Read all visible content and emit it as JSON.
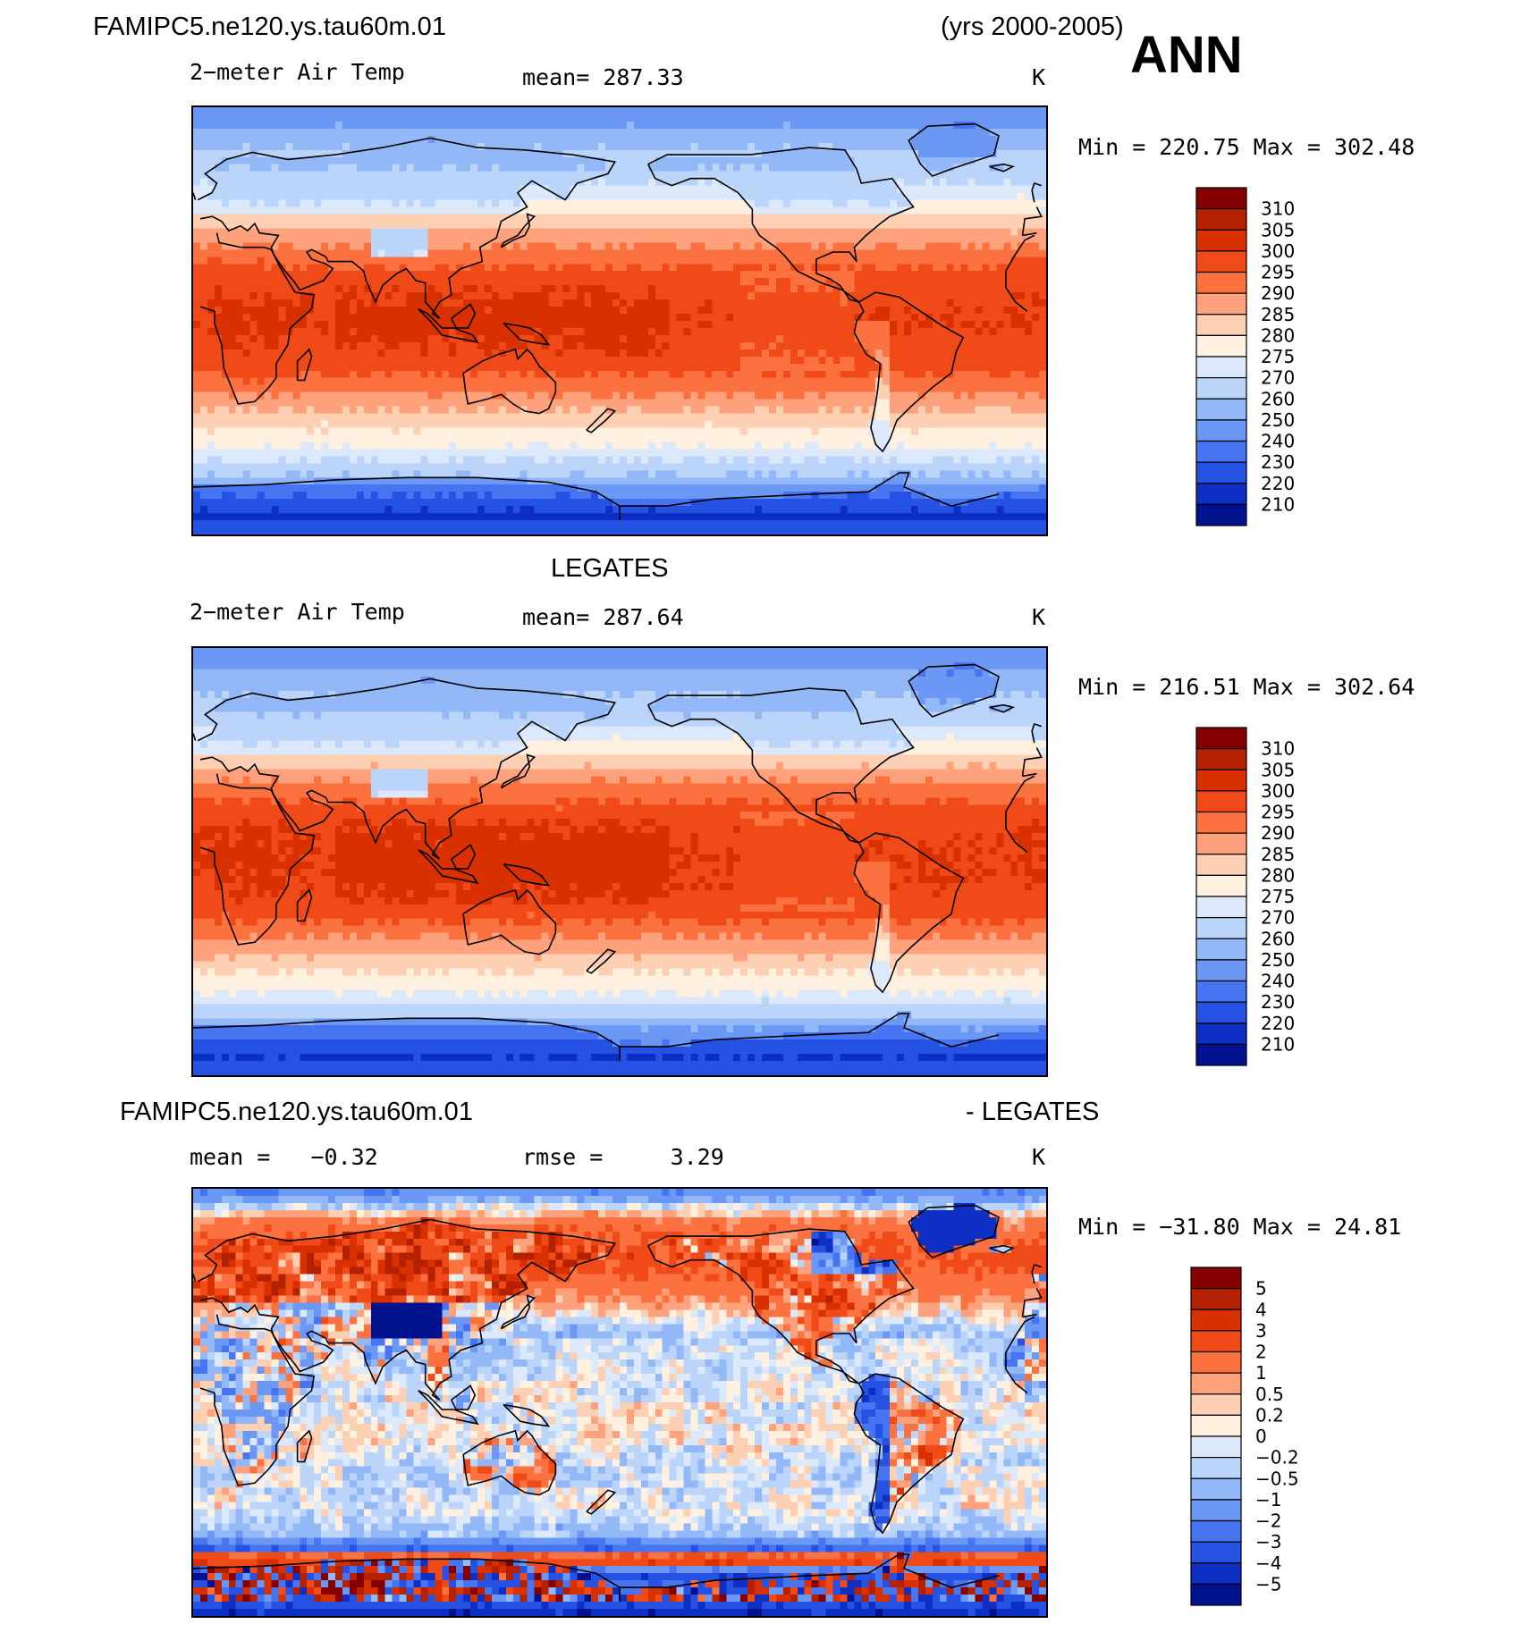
{
  "figure": {
    "case_name": "FAMIPC5.ne120.ys.tau60m.01",
    "years": "(yrs 2000-2005)",
    "season": "ANN",
    "obs_name": "LEGATES",
    "diff_suffix": "- LEGATES"
  },
  "panels": [
    {
      "variable": "2−meter Air Temp",
      "stat_label": "mean=",
      "stat_value": "287.33",
      "units": "K",
      "minmax": "Min = 220.75 Max = 302.48"
    },
    {
      "variable": "2−meter Air Temp",
      "stat_label": "mean=",
      "stat_value": "287.64",
      "units": "K",
      "minmax": "Min = 216.51 Max = 302.64"
    },
    {
      "mean_label": "mean =",
      "mean_value": "−0.32",
      "rmse_label": "rmse =",
      "rmse_value": "3.29",
      "units": "K",
      "minmax": "Min = −31.80 Max =   24.81"
    }
  ],
  "chart_data": {
    "type": "heatmap",
    "colorbars": [
      {
        "levels": [
          "310",
          "305",
          "300",
          "295",
          "290",
          "285",
          "280",
          "275",
          "270",
          "260",
          "250",
          "240",
          "230",
          "220",
          "210"
        ],
        "colors": [
          "#850000",
          "#b32100",
          "#d93000",
          "#f04a18",
          "#fb7240",
          "#fda27c",
          "#fdd0b4",
          "#fff0e0",
          "#dbe9fb",
          "#bad4fa",
          "#93b8f8",
          "#6c98f5",
          "#4774f0",
          "#2552e3",
          "#0d2fc3",
          "#01128f"
        ]
      },
      {
        "levels": [
          "5",
          "4",
          "3",
          "2",
          "1",
          "0.5",
          "0.2",
          "0",
          "−0.2",
          "−0.5",
          "−1",
          "−2",
          "−3",
          "−4",
          "−5"
        ],
        "colors": [
          "#850000",
          "#b32100",
          "#d93000",
          "#f04a18",
          "#fb7240",
          "#fda27c",
          "#fdd0b4",
          "#fff0e0",
          "#dbe9fb",
          "#bad4fa",
          "#93b8f8",
          "#6c98f5",
          "#4774f0",
          "#2552e3",
          "#0d2fc3",
          "#01128f"
        ]
      }
    ],
    "maps": [
      {
        "kind": "temperature",
        "zonal_profile": [
          [
            90,
            240
          ],
          [
            75,
            258
          ],
          [
            65,
            265
          ],
          [
            55,
            272
          ],
          [
            45,
            280
          ],
          [
            35,
            288
          ],
          [
            25,
            294
          ],
          [
            15,
            298
          ],
          [
            0,
            300
          ],
          [
            -15,
            298
          ],
          [
            -25,
            294
          ],
          [
            -35,
            287
          ],
          [
            -45,
            280
          ],
          [
            -55,
            274
          ],
          [
            -62,
            266
          ],
          [
            -70,
            248
          ],
          [
            -80,
            232
          ],
          [
            -90,
            222
          ]
        ]
      },
      {
        "kind": "temperature",
        "zonal_profile": [
          [
            90,
            240
          ],
          [
            75,
            257
          ],
          [
            65,
            264
          ],
          [
            55,
            272
          ],
          [
            45,
            280
          ],
          [
            35,
            289
          ],
          [
            25,
            295
          ],
          [
            15,
            299
          ],
          [
            0,
            300
          ],
          [
            -15,
            299
          ],
          [
            -25,
            295
          ],
          [
            -35,
            288
          ],
          [
            -45,
            281
          ],
          [
            -55,
            275
          ],
          [
            -62,
            267
          ],
          [
            -70,
            250
          ],
          [
            -80,
            234
          ],
          [
            -90,
            224
          ]
        ]
      },
      {
        "kind": "difference",
        "zonal_profile": [
          [
            90,
            -2
          ],
          [
            75,
            1.5
          ],
          [
            60,
            2.5
          ],
          [
            45,
            1
          ],
          [
            30,
            -0.5
          ],
          [
            15,
            -0.2
          ],
          [
            0,
            0
          ],
          [
            -15,
            0.1
          ],
          [
            -30,
            -0.3
          ],
          [
            -45,
            0
          ],
          [
            -55,
            -0.5
          ],
          [
            -62,
            -3
          ],
          [
            -66,
            5
          ],
          [
            -72,
            -4
          ],
          [
            -80,
            -2
          ],
          [
            -90,
            -5
          ]
        ]
      }
    ]
  }
}
